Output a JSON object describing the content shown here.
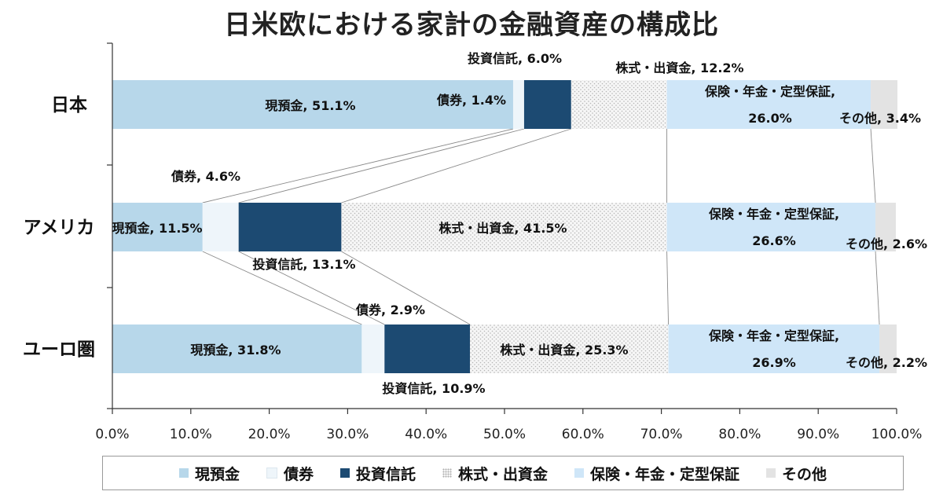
{
  "chart_data": {
    "type": "bar",
    "orientation": "horizontal",
    "stacked": true,
    "title": "日米欧における家計の金融資産の構成比",
    "categories": [
      "日本",
      "アメリカ",
      "ユーロ圏"
    ],
    "series": [
      {
        "name": "現預金",
        "values": [
          51.1,
          11.5,
          31.8
        ],
        "color": "#b7d7ea"
      },
      {
        "name": "債券",
        "values": [
          1.4,
          4.6,
          2.9
        ],
        "color": "#eef5fa"
      },
      {
        "name": "投資信託",
        "values": [
          6.0,
          13.1,
          10.9
        ],
        "color": "#1c4a72"
      },
      {
        "name": "株式・出資金",
        "values": [
          12.2,
          41.5,
          25.3
        ],
        "color": "#f3f3f3",
        "pattern": "dotted"
      },
      {
        "name": "保険・年金・定型保証",
        "values": [
          26.0,
          26.6,
          26.9
        ],
        "color": "#cfe6f8"
      },
      {
        "name": "その他",
        "values": [
          3.4,
          2.6,
          2.2
        ],
        "color": "#e3e3e3"
      }
    ],
    "xlim": [
      0,
      100
    ],
    "x_ticks": [
      "0.0%",
      "10.0%",
      "20.0%",
      "30.0%",
      "40.0%",
      "50.0%",
      "60.0%",
      "70.0%",
      "80.0%",
      "90.0%",
      "100.0%"
    ],
    "legend_position": "bottom",
    "series_lines": true,
    "data_labels": [
      [
        "現預金, 51.1%",
        "債券, 1.4%",
        "投資信託, 6.0%",
        "株式・出資金, 12.2%",
        [
          "保険・年金・定型保証,",
          "26.0%"
        ],
        "その他, 3.4%"
      ],
      [
        "現預金, 11.5%",
        "債券, 4.6%",
        "投資信託, 13.1%",
        "株式・出資金, 41.5%",
        [
          "保険・年金・定型保証,",
          "26.6%"
        ],
        "その他, 2.6%"
      ],
      [
        "現預金, 31.8%",
        "債券, 2.9%",
        "投資信託, 10.9%",
        "株式・出資金, 25.3%",
        [
          "保険・年金・定型保証,",
          "26.9%"
        ],
        "その他, 2.2%"
      ]
    ]
  },
  "legend": [
    {
      "label": "現預金",
      "color": "#b7d7ea"
    },
    {
      "label": "債券",
      "color": "#eef5fa"
    },
    {
      "label": "投資信託",
      "color": "#1c4a72"
    },
    {
      "label": "株式・出資金",
      "color": "#f3f3f3"
    },
    {
      "label": "保険・年金・定型保証",
      "color": "#cfe6f8"
    },
    {
      "label": "その他",
      "color": "#e3e3e3"
    }
  ]
}
